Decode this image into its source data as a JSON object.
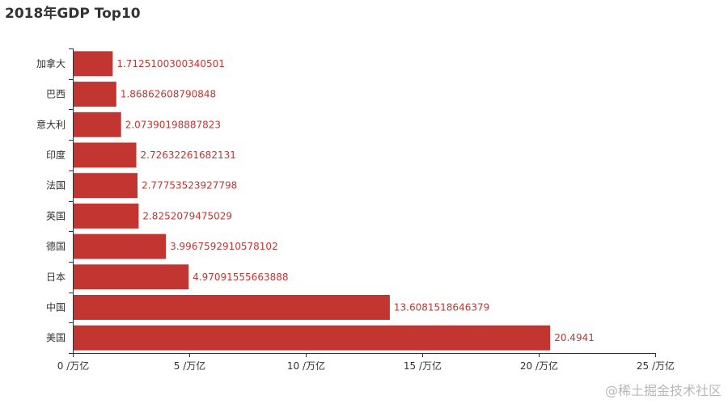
{
  "colors": {
    "bar": "#c23531",
    "axis": "#333333",
    "title": "#333333",
    "watermark": "#b8b8b8"
  },
  "watermark": "@稀土掘金技术社区",
  "chart_data": {
    "type": "bar",
    "orientation": "horizontal",
    "title": "2018年GDP Top10",
    "categories": [
      "美国",
      "中国",
      "日本",
      "德国",
      "英国",
      "法国",
      "印度",
      "意大利",
      "巴西",
      "加拿大"
    ],
    "values": [
      20.4941,
      13.6081518646379,
      4.97091555663888,
      3.9967592910578102,
      2.8252079475029,
      2.77753523927798,
      2.72632261682131,
      2.07390198887823,
      1.86862608790848,
      1.7125100300340501
    ],
    "value_labels": [
      "20.4941",
      "13.6081518646379",
      "4.97091555663888",
      "3.9967592910578102",
      "2.8252079475029",
      "2.77753523927798",
      "2.72632261682131",
      "2.07390198887823",
      "1.86862608790848",
      "1.7125100300340501"
    ],
    "xlim": [
      0,
      25
    ],
    "x_ticks": [
      0,
      5,
      10,
      15,
      20,
      25
    ],
    "x_tick_labels": [
      "0 /万亿",
      "5 /万亿",
      "10 /万亿",
      "15 /万亿",
      "20 /万亿",
      "25 /万亿"
    ],
    "grid": false,
    "legend": "none"
  }
}
